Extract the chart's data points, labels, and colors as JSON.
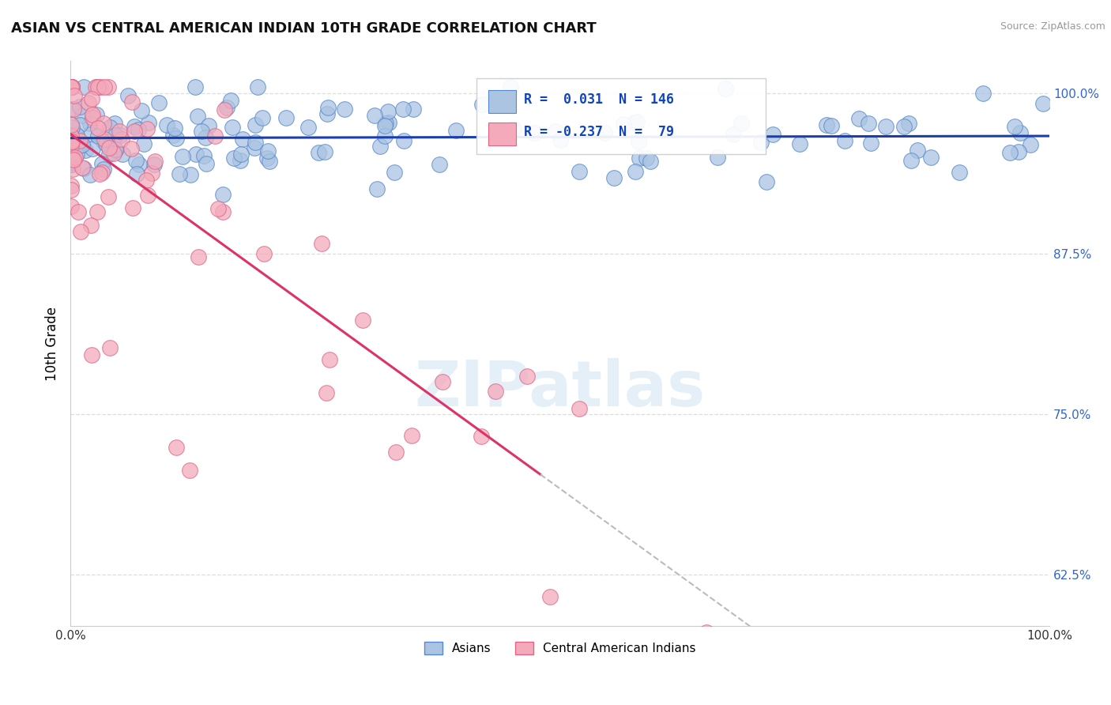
{
  "title": "ASIAN VS CENTRAL AMERICAN INDIAN 10TH GRADE CORRELATION CHART",
  "source": "Source: ZipAtlas.com",
  "ylabel": "10th Grade",
  "xlim": [
    0.0,
    1.0
  ],
  "ylim": [
    0.585,
    1.025
  ],
  "ytick_labels": [
    "62.5%",
    "75.0%",
    "87.5%",
    "100.0%"
  ],
  "ytick_positions": [
    0.625,
    0.75,
    0.875,
    1.0
  ],
  "asian_color": "#aac4e2",
  "asian_edge_color": "#5588cc",
  "central_color": "#f4aabb",
  "central_edge_color": "#dd6688",
  "trend_asian_color": "#1a3faa",
  "trend_central_solid_color": "#dd3366",
  "trend_central_dashed_color": "#bbbbbb",
  "R_asian": 0.031,
  "N_asian": 146,
  "R_central": -0.237,
  "N_central": 79,
  "legend_text_color": "#1144bb",
  "watermark": "ZIPatlas",
  "background_color": "#ffffff",
  "grid_color": "#dddddd",
  "grid_linestyle": "--"
}
